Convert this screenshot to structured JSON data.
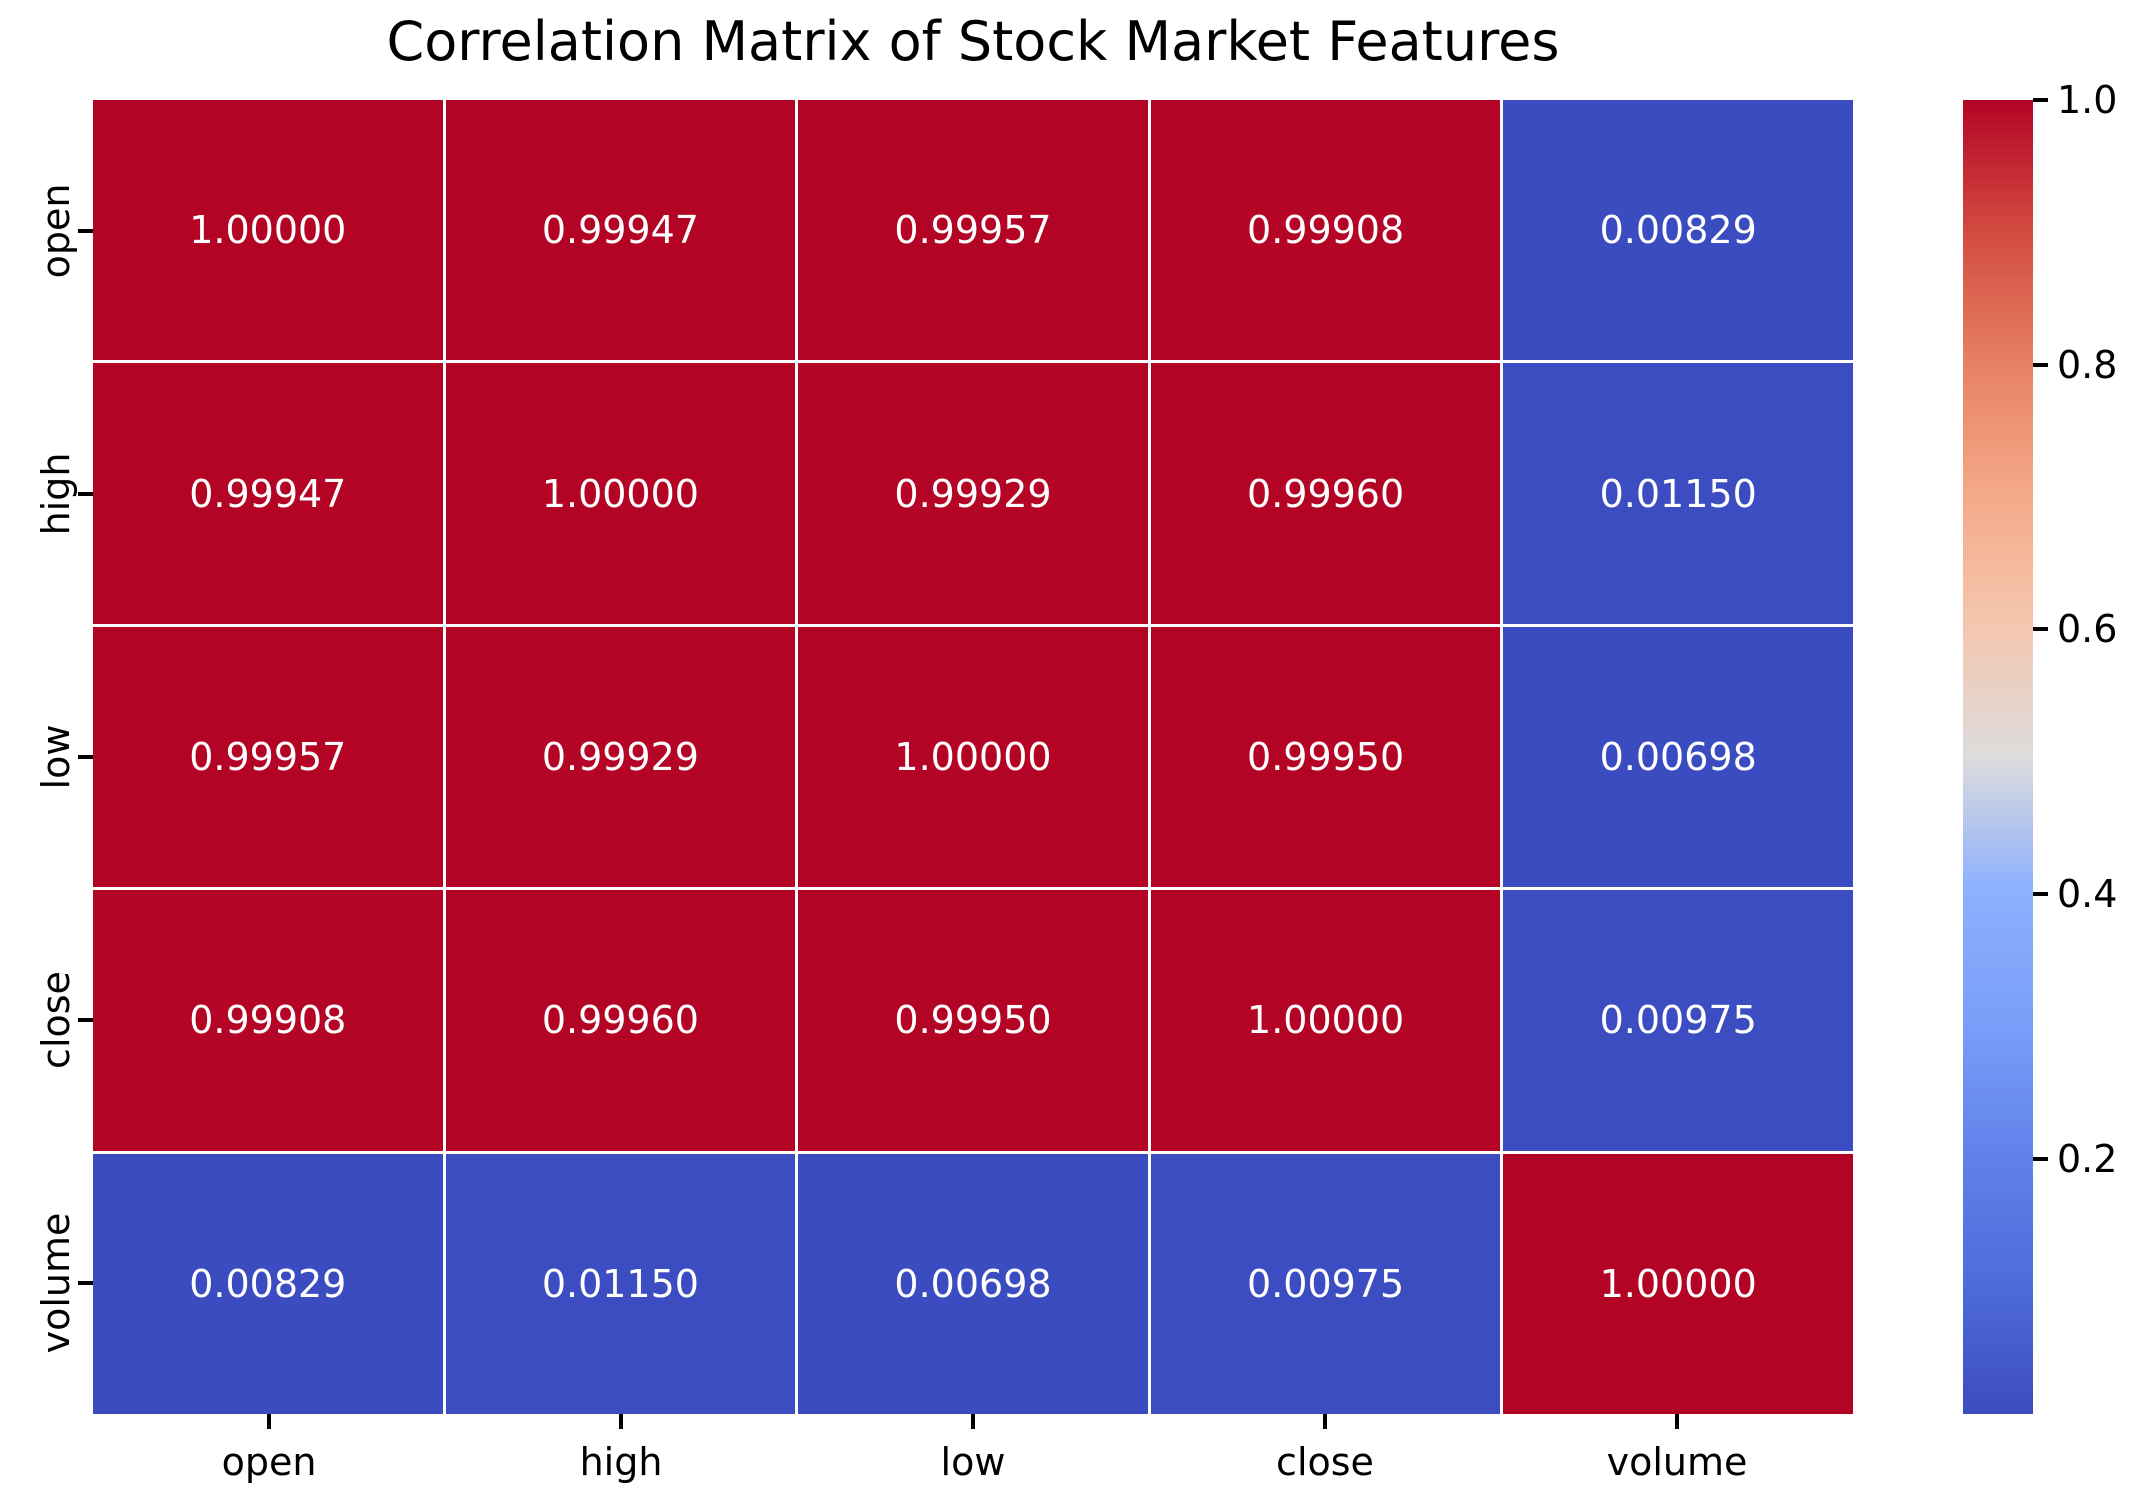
{
  "chart_data": {
    "type": "heatmap",
    "title": "Correlation Matrix of Stock Market Features",
    "categories": [
      "open",
      "high",
      "low",
      "close",
      "volume"
    ],
    "x_axis_labels": [
      "open",
      "high",
      "low",
      "close",
      "volume"
    ],
    "y_axis_labels": [
      "open",
      "high",
      "low",
      "close",
      "volume"
    ],
    "matrix": [
      [
        1.0,
        0.99947,
        0.99957,
        0.99908,
        0.00829
      ],
      [
        0.99947,
        1.0,
        0.99929,
        0.9996,
        0.0115
      ],
      [
        0.99957,
        0.99929,
        1.0,
        0.9995,
        0.00698
      ],
      [
        0.99908,
        0.9996,
        0.9995,
        1.0,
        0.00975
      ],
      [
        0.00829,
        0.0115,
        0.00698,
        0.00975,
        1.0
      ]
    ],
    "value_decimals": 5,
    "colormap": "coolwarm",
    "vmin": 0.00698,
    "vmax": 1.0,
    "colorbar_ticks": [
      1.0,
      0.8,
      0.6,
      0.4,
      0.2
    ],
    "colorbar_tick_decimals": 1,
    "legend_position": "right-colorbar",
    "grid": false
  },
  "colors": {
    "strong_corr_cell": "#b40426",
    "weak_corr_cell": "#3b4cc0",
    "annotation_text": "#ffffff",
    "axis_text": "#000000",
    "background": "#ffffff",
    "gridline": "#ffffff",
    "colorbar_gradient_top_to_bottom": [
      "#b40426",
      "#d24b40",
      "#e78163",
      "#f4a988",
      "#f4c6af",
      "#dddcdc",
      "#8eb0fe",
      "#7b9ff9",
      "#6282ea",
      "#4f6cdb",
      "#3b4cc0"
    ]
  }
}
